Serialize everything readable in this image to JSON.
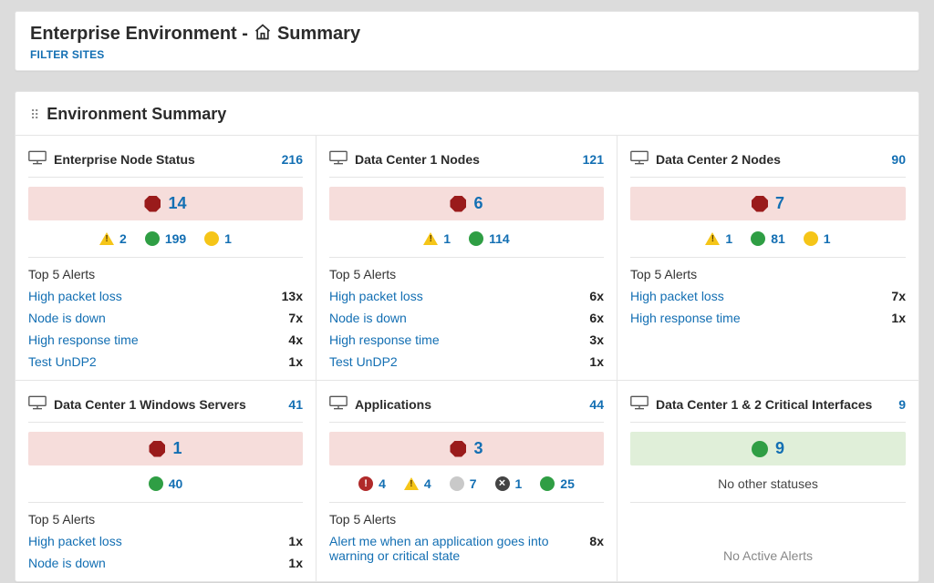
{
  "colors": {
    "page_bg": "#dcdcdc",
    "panel_bg": "#ffffff",
    "border": "#e5e5e5",
    "link": "#136fb3",
    "text": "#2b2b2b",
    "muted": "#888888",
    "status_red": "#9a1b1b",
    "status_red_solid": "#b02a2a",
    "status_green": "#2f9e44",
    "status_yellow": "#f5c518",
    "status_gray": "#c9c9c9",
    "status_dark": "#444444",
    "hero_red_bg": "#F6DDDB",
    "hero_green_bg": "#E0EFD9"
  },
  "header": {
    "title_prefix": "Enterprise Environment - ",
    "title_suffix": "Summary",
    "filter_label": "FILTER SITES"
  },
  "section": {
    "title": "Environment Summary",
    "alerts_heading": "Top 5 Alerts",
    "no_other_statuses": "No other statuses",
    "no_active_alerts": "No Active Alerts"
  },
  "cards": [
    {
      "title": "Enterprise Node Status",
      "count": 216,
      "hero": {
        "shape": "octagon",
        "value": 14,
        "bg": "red"
      },
      "statuses": [
        {
          "shape": "triangle",
          "value": 2
        },
        {
          "shape": "circle",
          "color": "green",
          "value": 199
        },
        {
          "shape": "circle",
          "color": "yellow",
          "value": 1
        }
      ],
      "alerts": [
        {
          "name": "High packet loss",
          "count": "13x"
        },
        {
          "name": "Node is down",
          "count": "7x"
        },
        {
          "name": "High response time",
          "count": "4x"
        },
        {
          "name": "Test UnDP2",
          "count": "1x"
        }
      ]
    },
    {
      "title": "Data Center 1 Nodes",
      "count": 121,
      "hero": {
        "shape": "octagon",
        "value": 6,
        "bg": "red"
      },
      "statuses": [
        {
          "shape": "triangle",
          "value": 1
        },
        {
          "shape": "circle",
          "color": "green",
          "value": 114
        }
      ],
      "alerts": [
        {
          "name": "High packet loss",
          "count": "6x"
        },
        {
          "name": "Node is down",
          "count": "6x"
        },
        {
          "name": "High response time",
          "count": "3x"
        },
        {
          "name": "Test UnDP2",
          "count": "1x"
        }
      ]
    },
    {
      "title": "Data Center 2 Nodes",
      "count": 90,
      "hero": {
        "shape": "octagon",
        "value": 7,
        "bg": "red"
      },
      "statuses": [
        {
          "shape": "triangle",
          "value": 1
        },
        {
          "shape": "circle",
          "color": "green",
          "value": 81
        },
        {
          "shape": "circle",
          "color": "yellow",
          "value": 1
        }
      ],
      "alerts": [
        {
          "name": "High packet loss",
          "count": "7x"
        },
        {
          "name": "High response time",
          "count": "1x"
        }
      ]
    },
    {
      "title": "Data Center 1 Windows Servers",
      "count": 41,
      "hero": {
        "shape": "octagon",
        "value": 1,
        "bg": "red"
      },
      "statuses": [
        {
          "shape": "circle",
          "color": "green",
          "value": 40
        }
      ],
      "alerts": [
        {
          "name": "High packet loss",
          "count": "1x"
        },
        {
          "name": "Node is down",
          "count": "1x"
        }
      ]
    },
    {
      "title": "Applications",
      "count": 44,
      "hero": {
        "shape": "octagon",
        "value": 3,
        "bg": "red"
      },
      "statuses": [
        {
          "shape": "circle",
          "color": "red",
          "value": 4
        },
        {
          "shape": "triangle",
          "value": 4
        },
        {
          "shape": "circle",
          "color": "gray",
          "value": 7
        },
        {
          "shape": "circle",
          "color": "dark",
          "value": 1
        },
        {
          "shape": "circle",
          "color": "green",
          "value": 25
        }
      ],
      "alerts": [
        {
          "name": "Alert me when an application goes into warning or critical state",
          "count": "8x"
        }
      ]
    },
    {
      "title": "Data Center 1 & 2 Critical Interfaces",
      "count": 9,
      "hero": {
        "shape": "circle-green",
        "value": 9,
        "bg": "green"
      },
      "no_other": true,
      "no_active": true
    }
  ]
}
